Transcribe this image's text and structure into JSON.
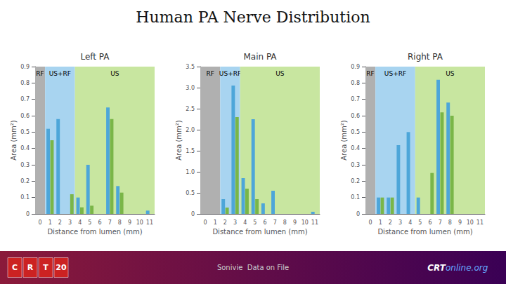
{
  "title": "Human PA Nerve Distribution",
  "annotations": {
    "footer": "Sonivie  Data on File",
    "logo": [
      "C",
      "R",
      "T",
      "20"
    ],
    "site": [
      "CRT",
      "online.org"
    ]
  },
  "chart_data": [
    {
      "type": "bar",
      "subtitle": "Left PA",
      "categories": [
        "0",
        "1",
        "2",
        "3",
        "4",
        "5",
        "6",
        "7",
        "8",
        "9",
        "10",
        "11"
      ],
      "series": [
        {
          "color": "#4da6d9",
          "values": [
            0,
            0.52,
            0.58,
            0,
            0.1,
            0.3,
            0,
            0.65,
            0.17,
            0,
            0,
            0.02
          ]
        },
        {
          "color": "#7ab648",
          "values": [
            0,
            0.45,
            0,
            0.12,
            0.04,
            0.05,
            0,
            0.58,
            0.13,
            0,
            0,
            0
          ]
        }
      ],
      "regions": [
        {
          "label": "RF",
          "from": "0",
          "to": "0",
          "color": "#b0b0b0"
        },
        {
          "label": "US+RF",
          "from": "1",
          "to": "3",
          "color": "#a8d4f0"
        },
        {
          "label": "US",
          "from": "4",
          "to": "11",
          "color": "#c8e6a0"
        }
      ],
      "xlabel": "Distance from lumen (mm)",
      "ylabel": "Area (mm²)",
      "ylim": [
        0,
        0.9
      ],
      "yticks": [
        0,
        0.1,
        0.2,
        0.3,
        0.4,
        0.5,
        0.6,
        0.7,
        0.8,
        0.9
      ],
      "grid": false
    },
    {
      "type": "bar",
      "subtitle": "Main PA",
      "categories": [
        "0",
        "1",
        "2",
        "3",
        "4",
        "5",
        "6",
        "7",
        "8",
        "9",
        "10",
        "11"
      ],
      "series": [
        {
          "color": "#4da6d9",
          "values": [
            0,
            0,
            0.35,
            3.05,
            0.85,
            2.25,
            0.25,
            0.55,
            0,
            0,
            0,
            0.05
          ]
        },
        {
          "color": "#7ab648",
          "values": [
            0,
            0,
            0.15,
            2.3,
            0.6,
            0.35,
            0,
            0,
            0,
            0,
            0,
            0
          ]
        }
      ],
      "regions": [
        {
          "label": "RF",
          "from": "0",
          "to": "1",
          "color": "#b0b0b0"
        },
        {
          "label": "US+RF",
          "from": "2",
          "to": "3",
          "color": "#a8d4f0"
        },
        {
          "label": "US",
          "from": "4",
          "to": "11",
          "color": "#c8e6a0"
        }
      ],
      "xlabel": "Distance from lumen (mm)",
      "ylabel": "Area (mm²)",
      "ylim": [
        0,
        3.5
      ],
      "yticks": [
        0,
        0.5,
        {
          "value": 1,
          "label": "1.0"
        },
        1.5,
        {
          "value": 2,
          "label": "2.0"
        },
        2.5,
        {
          "value": 3,
          "label": "3.0"
        },
        3.5
      ],
      "grid": false
    },
    {
      "type": "bar",
      "subtitle": "Right PA",
      "categories": [
        "0",
        "1",
        "2",
        "3",
        "4",
        "5",
        "6",
        "7",
        "8",
        "9",
        "10",
        "11"
      ],
      "series": [
        {
          "color": "#4da6d9",
          "values": [
            0,
            0.1,
            0.1,
            0.42,
            0.5,
            0.1,
            0,
            0.82,
            0.68,
            0,
            0,
            0
          ]
        },
        {
          "color": "#7ab648",
          "values": [
            0,
            0.1,
            0.1,
            0,
            0,
            0,
            0.25,
            0.62,
            0.6,
            0,
            0,
            0
          ]
        }
      ],
      "regions": [
        {
          "label": "RF",
          "from": "0",
          "to": "0",
          "color": "#b0b0b0"
        },
        {
          "label": "US+RF",
          "from": "1",
          "to": "4",
          "color": "#a8d4f0"
        },
        {
          "label": "US",
          "from": "5",
          "to": "11",
          "color": "#c8e6a0"
        }
      ],
      "xlabel": "Distance from lumen (mm)",
      "ylabel": "Area (mm²)",
      "ylim": [
        0,
        0.9
      ],
      "yticks": [
        0,
        0.1,
        0.2,
        0.3,
        0.4,
        0.5,
        0.6,
        0.7,
        0.8,
        0.9
      ],
      "grid": false
    }
  ]
}
